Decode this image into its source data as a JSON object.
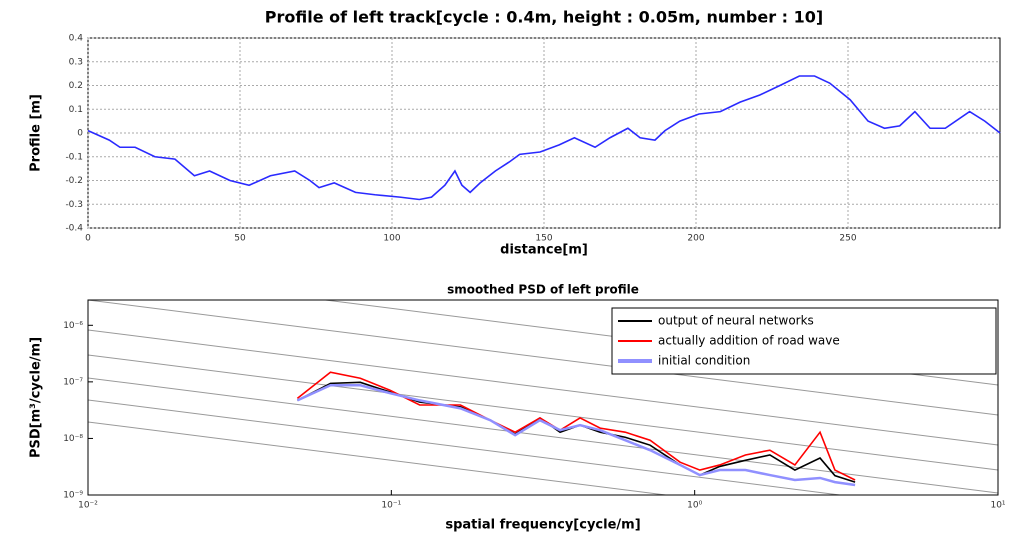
{
  "chart_data": [
    {
      "type": "line",
      "title": "Profile of left track[cycle : 0.4m, height : 0.05m, number : 10]",
      "x_label": "distance[m]",
      "y_label": "Profile [m]",
      "color": "#2a2aff",
      "grid": true,
      "x": [
        0,
        7,
        10.5,
        15.5,
        22,
        28.6,
        35,
        40,
        46.7,
        53,
        60,
        68,
        73,
        76,
        81,
        88,
        94.4,
        102.6,
        109,
        113,
        117.4,
        120.7,
        123,
        125.7,
        129,
        134,
        138.8,
        142,
        148.7,
        155,
        160,
        166.8,
        171.7,
        177.6,
        181.6,
        186.5,
        189.8,
        194.7,
        201,
        208,
        214.5,
        221,
        227.6,
        234,
        239,
        244,
        250.7,
        256.6,
        262,
        267,
        272,
        277,
        282,
        290,
        295,
        300
      ],
      "values": [
        0.01,
        -0.03,
        -0.06,
        -0.06,
        -0.1,
        -0.11,
        -0.18,
        -0.16,
        -0.2,
        -0.22,
        -0.18,
        -0.16,
        -0.2,
        -0.23,
        -0.21,
        -0.25,
        -0.26,
        -0.27,
        -0.28,
        -0.27,
        -0.22,
        -0.16,
        -0.22,
        -0.25,
        -0.21,
        -0.16,
        -0.12,
        -0.09,
        -0.08,
        -0.05,
        -0.02,
        -0.06,
        -0.02,
        0.02,
        -0.02,
        -0.03,
        0.01,
        0.05,
        0.08,
        0.09,
        0.13,
        0.16,
        0.2,
        0.24,
        0.24,
        0.21,
        0.14,
        0.05,
        0.02,
        0.03,
        0.09,
        0.02,
        0.02,
        0.09,
        0.05,
        0
      ],
      "xlim": [
        0,
        300
      ],
      "xticks": [
        0,
        50,
        100,
        150,
        200,
        250
      ],
      "ylim": [
        -0.4,
        0.4
      ],
      "yticks": [
        -0.4,
        -0.3,
        -0.2,
        -0.1,
        0,
        0.1,
        0.2,
        0.3,
        0.4
      ]
    },
    {
      "type": "line",
      "title": "smoothed PSD of left profile",
      "x_label": "spatial frequency[cycle/m]",
      "y_label": "PSD[m³/cycle/m]",
      "log_x": true,
      "log_y": true,
      "grid": false,
      "legend": "upper right",
      "x": [
        0.049,
        0.063,
        0.079,
        0.099,
        0.124,
        0.169,
        0.212,
        0.256,
        0.309,
        0.36,
        0.419,
        0.488,
        0.59,
        0.713,
        0.895,
        1.04,
        1.21,
        1.47,
        1.77,
        2.14,
        2.59,
        2.9,
        3.38
      ],
      "series": [
        {
          "name": "output of neural networks",
          "color": "#000000",
          "values": [
            4.7e-08,
            9.4e-08,
            9.8e-08,
            6.6e-08,
            4.4e-08,
            3.6e-08,
            2.1e-08,
            1.19e-08,
            2.3e-08,
            1.29e-08,
            1.72e-08,
            1.29e-08,
            1.05e-08,
            7.6e-09,
            3.4e-09,
            2.25e-09,
            3.2e-09,
            4.1e-09,
            5.1e-09,
            2.76e-09,
            4.5e-09,
            2.2e-09,
            1.69e-09
          ]
        },
        {
          "name": "actually addition of road wave",
          "color": "#ff0000",
          "values": [
            5.1e-08,
            1.48e-07,
            1.16e-07,
            7.1e-08,
            3.9e-08,
            3.9e-08,
            2.1e-08,
            1.29e-08,
            2.3e-08,
            1.4e-08,
            2.3e-08,
            1.52e-08,
            1.29e-08,
            9.3e-09,
            3.8e-09,
            2.76e-09,
            3.4e-09,
            5.1e-09,
            6.2e-09,
            3.4e-09,
            1.29e-08,
            2.76e-09,
            1.84e-09
          ]
        },
        {
          "name": "initial condition",
          "color": "#9090ff",
          "values": [
            4.7e-08,
            8.7e-08,
            8.7e-08,
            6.3e-08,
            4.7e-08,
            3.4e-08,
            2.1e-08,
            1.14e-08,
            2.1e-08,
            1.4e-08,
            1.72e-08,
            1.4e-08,
            9.3e-09,
            6.2e-09,
            3.4e-09,
            2.25e-09,
            2.76e-09,
            2.76e-09,
            2.25e-09,
            1.84e-09,
            2e-09,
            1.69e-09,
            1.5e-09
          ]
        }
      ],
      "xlim": [
        0.01,
        10
      ],
      "xticks": [
        {
          "value": 0.01,
          "label": "10⁻²"
        },
        {
          "value": 0.1,
          "label": "10⁻¹"
        },
        {
          "value": 1,
          "label": "10⁰"
        },
        {
          "value": 10,
          "label": "10¹"
        }
      ],
      "ylim": [
        1e-09,
        2.8e-06
      ],
      "yticks": [
        {
          "value": 1e-09,
          "label": "10⁻⁹"
        },
        {
          "value": 1e-08,
          "label": "10⁻⁸"
        },
        {
          "value": 1e-07,
          "label": "10⁻⁷"
        },
        {
          "value": 1e-06,
          "label": "10⁻⁶"
        }
      ]
    }
  ]
}
